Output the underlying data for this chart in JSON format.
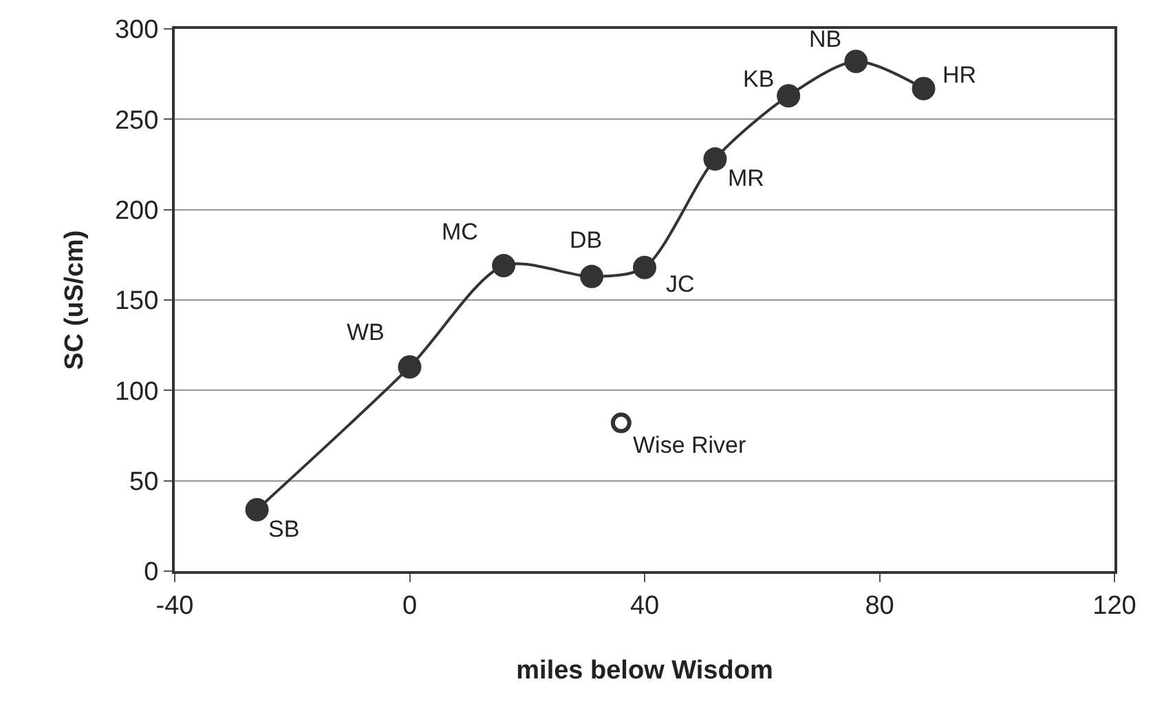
{
  "chart_data": {
    "type": "line",
    "xlabel": "miles below Wisdom",
    "ylabel": "SC (uS/cm)",
    "series": [
      {
        "color": "#333333",
        "x": [
          -26,
          0,
          16,
          31,
          40,
          52,
          64.5,
          76,
          87.5
        ],
        "values": [
          34,
          113,
          169,
          163,
          168,
          228,
          263,
          282,
          267
        ]
      },
      {
        "type": "scatter",
        "color": "#333333",
        "x": [
          36
        ],
        "values": [
          82
        ]
      }
    ],
    "xlim": [
      -40,
      120
    ],
    "xticks": [
      -40,
      0,
      40,
      80,
      120
    ],
    "ylim": [
      0,
      300
    ],
    "yticks": [
      0,
      50,
      100,
      150,
      200,
      250,
      300
    ],
    "grid": "y",
    "marker": "circle",
    "line_style": "solid",
    "annotations": [
      {
        "text": "SB",
        "x": -26,
        "y": 34
      },
      {
        "text": "WB",
        "x": 0,
        "y": 113
      },
      {
        "text": "MC",
        "x": 16,
        "y": 169
      },
      {
        "text": "DB",
        "x": 31,
        "y": 163
      },
      {
        "text": "JC",
        "x": 40,
        "y": 168
      },
      {
        "text": "MR",
        "x": 52,
        "y": 228
      },
      {
        "text": "KB",
        "x": 64.5,
        "y": 263
      },
      {
        "text": "NB",
        "x": 76,
        "y": 282
      },
      {
        "text": "HR",
        "x": 87.5,
        "y": 267
      },
      {
        "text": "Wise River",
        "x": 36,
        "y": 82
      }
    ]
  }
}
